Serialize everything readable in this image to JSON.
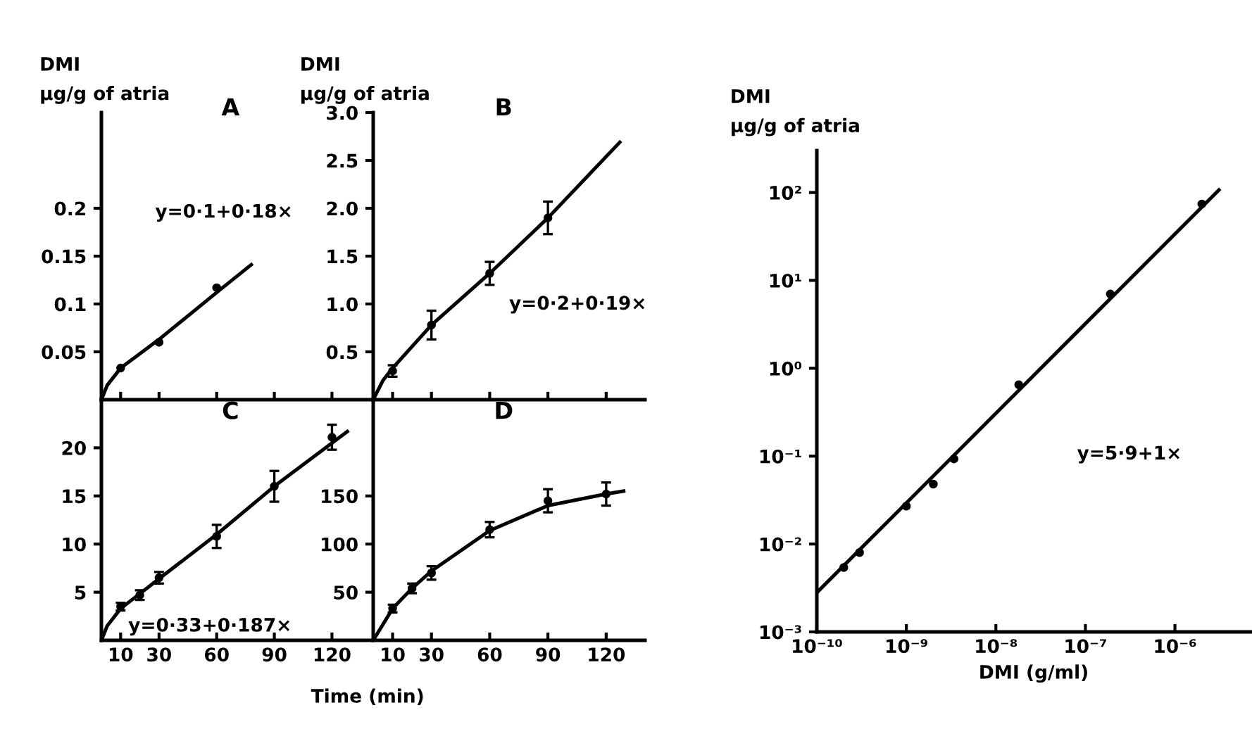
{
  "chart_data": [
    {
      "type": "scatter",
      "title": "A",
      "ylabel": "DMI\nμg/g of atria",
      "annotations": [
        "y=0·1+0·18×"
      ],
      "xlim": [
        0,
        140
      ],
      "ylim": [
        0,
        0.3
      ],
      "xticks": [
        {
          "value": 10,
          "label": null
        },
        {
          "value": 30,
          "label": null
        },
        {
          "value": 60,
          "label": null
        },
        {
          "value": 90,
          "label": null
        },
        {
          "value": 120,
          "label": null
        }
      ],
      "yticks": [
        0.05,
        0.1,
        0.15,
        0.2
      ],
      "tick_labels": "y",
      "marker": "circle",
      "grid": false,
      "legend": false,
      "series": [
        {
          "color": "#000000",
          "x": [
            10,
            30,
            60
          ],
          "values": [
            0.033,
            0.06,
            0.117
          ]
        },
        {
          "type": "line",
          "color": "#000000",
          "marker": "none",
          "x": [
            0,
            3,
            10,
            30,
            60,
            78
          ],
          "values": [
            0,
            0.015,
            0.033,
            0.063,
            0.112,
            0.141
          ]
        }
      ]
    },
    {
      "type": "scatter",
      "title": "B",
      "ylabel": "DMI\nμg/g of atria",
      "annotations": [
        "y=0·2+0·19×"
      ],
      "xlim": [
        0,
        140
      ],
      "ylim": [
        0,
        3
      ],
      "xticks": [
        {
          "value": 10,
          "label": null
        },
        {
          "value": 30,
          "label": null
        },
        {
          "value": 60,
          "label": null
        },
        {
          "value": 90,
          "label": null
        },
        {
          "value": 120,
          "label": null
        }
      ],
      "yticks": [
        0.5,
        {
          "value": 1,
          "label": "1.0"
        },
        1.5,
        {
          "value": 2,
          "label": "2.0"
        },
        2.5,
        {
          "value": 3,
          "label": "3.0"
        }
      ],
      "tick_labels": "y",
      "marker": "circle",
      "grid": false,
      "legend": false,
      "series": [
        {
          "color": "#000000",
          "x": [
            10,
            30,
            60,
            90
          ],
          "values": [
            0.3,
            0.78,
            1.32,
            1.9
          ],
          "errors": [
            0.06,
            0.15,
            0.12,
            0.17
          ]
        },
        {
          "type": "line",
          "color": "#000000",
          "marker": "none",
          "x": [
            0,
            5,
            10,
            30,
            60,
            90,
            127
          ],
          "values": [
            0,
            0.2,
            0.33,
            0.78,
            1.32,
            1.9,
            2.69
          ]
        }
      ]
    },
    {
      "type": "scatter",
      "title": "C",
      "xlabel": "Time (min)",
      "annotations": [
        "y=0·33+0·187×"
      ],
      "xlim": [
        0,
        140
      ],
      "ylim": [
        0,
        25
      ],
      "xticks": [
        10,
        30,
        60,
        90,
        120
      ],
      "yticks": [
        5,
        10,
        15,
        20
      ],
      "marker": "circle",
      "grid": false,
      "legend": false,
      "series": [
        {
          "color": "#000000",
          "x": [
            10,
            20,
            30,
            60,
            90,
            120
          ],
          "values": [
            3.5,
            4.7,
            6.5,
            10.8,
            16,
            21.1
          ],
          "errors": [
            0.4,
            0.5,
            0.6,
            1.2,
            1.6,
            1.3
          ]
        },
        {
          "type": "line",
          "color": "#000000",
          "marker": "none",
          "x": [
            0,
            3,
            10,
            30,
            60,
            90,
            128
          ],
          "values": [
            0,
            1.5,
            3.3,
            6.4,
            11,
            16,
            21.7
          ]
        }
      ]
    },
    {
      "type": "scatter",
      "title": "D",
      "xlim": [
        0,
        140
      ],
      "ylim": [
        0,
        250
      ],
      "xticks": [
        10,
        30,
        60,
        90,
        120
      ],
      "yticks": [
        50,
        100,
        150
      ],
      "marker": "circle",
      "grid": false,
      "legend": false,
      "series": [
        {
          "color": "#000000",
          "x": [
            10,
            20,
            30,
            60,
            90,
            120
          ],
          "values": [
            33,
            54,
            70,
            115,
            145,
            152
          ],
          "errors": [
            4,
            5,
            7,
            8,
            12,
            12
          ]
        },
        {
          "type": "line",
          "color": "#000000",
          "marker": "none",
          "x": [
            0,
            10,
            20,
            30,
            60,
            90,
            120,
            129
          ],
          "values": [
            0,
            33,
            54,
            72,
            114,
            140,
            152,
            155
          ]
        }
      ]
    },
    {
      "type": "scatter",
      "ylabel": "DMI\nμg/g of atria",
      "xlabel": "DMI (g/ml)",
      "annotations": [
        "y=5·9+1×"
      ],
      "log": "xy",
      "xlim": [
        1e-10,
        7e-06
      ],
      "ylim": [
        0.001,
        300
      ],
      "xticks": [
        {
          "value": 1e-10,
          "label": "10⁻¹⁰"
        },
        {
          "value": 1e-09,
          "label": "10⁻⁹"
        },
        {
          "value": 1e-08,
          "label": "10⁻⁸"
        },
        {
          "value": 1e-07,
          "label": "10⁻⁷"
        },
        {
          "value": 1e-06,
          "label": "10⁻⁶"
        }
      ],
      "yticks": [
        {
          "value": 0.001,
          "label": "10⁻³"
        },
        {
          "value": 0.01,
          "label": "10⁻²"
        },
        {
          "value": 0.1,
          "label": "10⁻¹"
        },
        {
          "value": 1,
          "label": "10⁰"
        },
        {
          "value": 10,
          "label": "10¹"
        },
        {
          "value": 100,
          "label": "10²"
        }
      ],
      "marker": "circle",
      "grid": false,
      "legend": false,
      "series": [
        {
          "color": "#000000",
          "x": [
            2e-10,
            3e-10,
            1e-09,
            2e-09,
            3.4e-09,
            1.8e-08,
            1.9e-07,
            2e-06
          ],
          "values": [
            0.0054,
            0.008,
            0.027,
            0.048,
            0.093,
            0.65,
            7,
            74
          ]
        },
        {
          "type": "line",
          "color": "#000000",
          "marker": "none",
          "x": [
            1e-10,
            3.1e-06
          ],
          "values": [
            0.0028,
            107
          ]
        }
      ]
    }
  ]
}
